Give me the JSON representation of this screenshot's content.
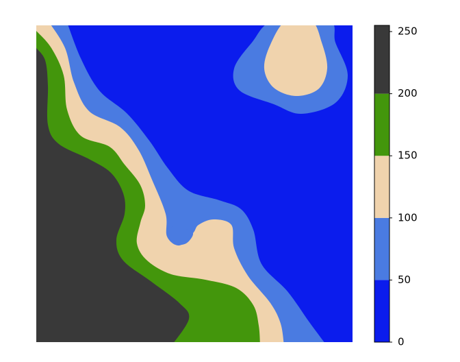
{
  "chart_data": {
    "type": "contourf",
    "levels": [
      0,
      50,
      100,
      150,
      200,
      255
    ],
    "colors": [
      "#0b1ced",
      "#4a7be1",
      "#f0d3ad",
      "#43960c",
      "#393939"
    ],
    "colorbar_ticks": [
      0,
      50,
      100,
      150,
      200,
      250
    ]
  }
}
